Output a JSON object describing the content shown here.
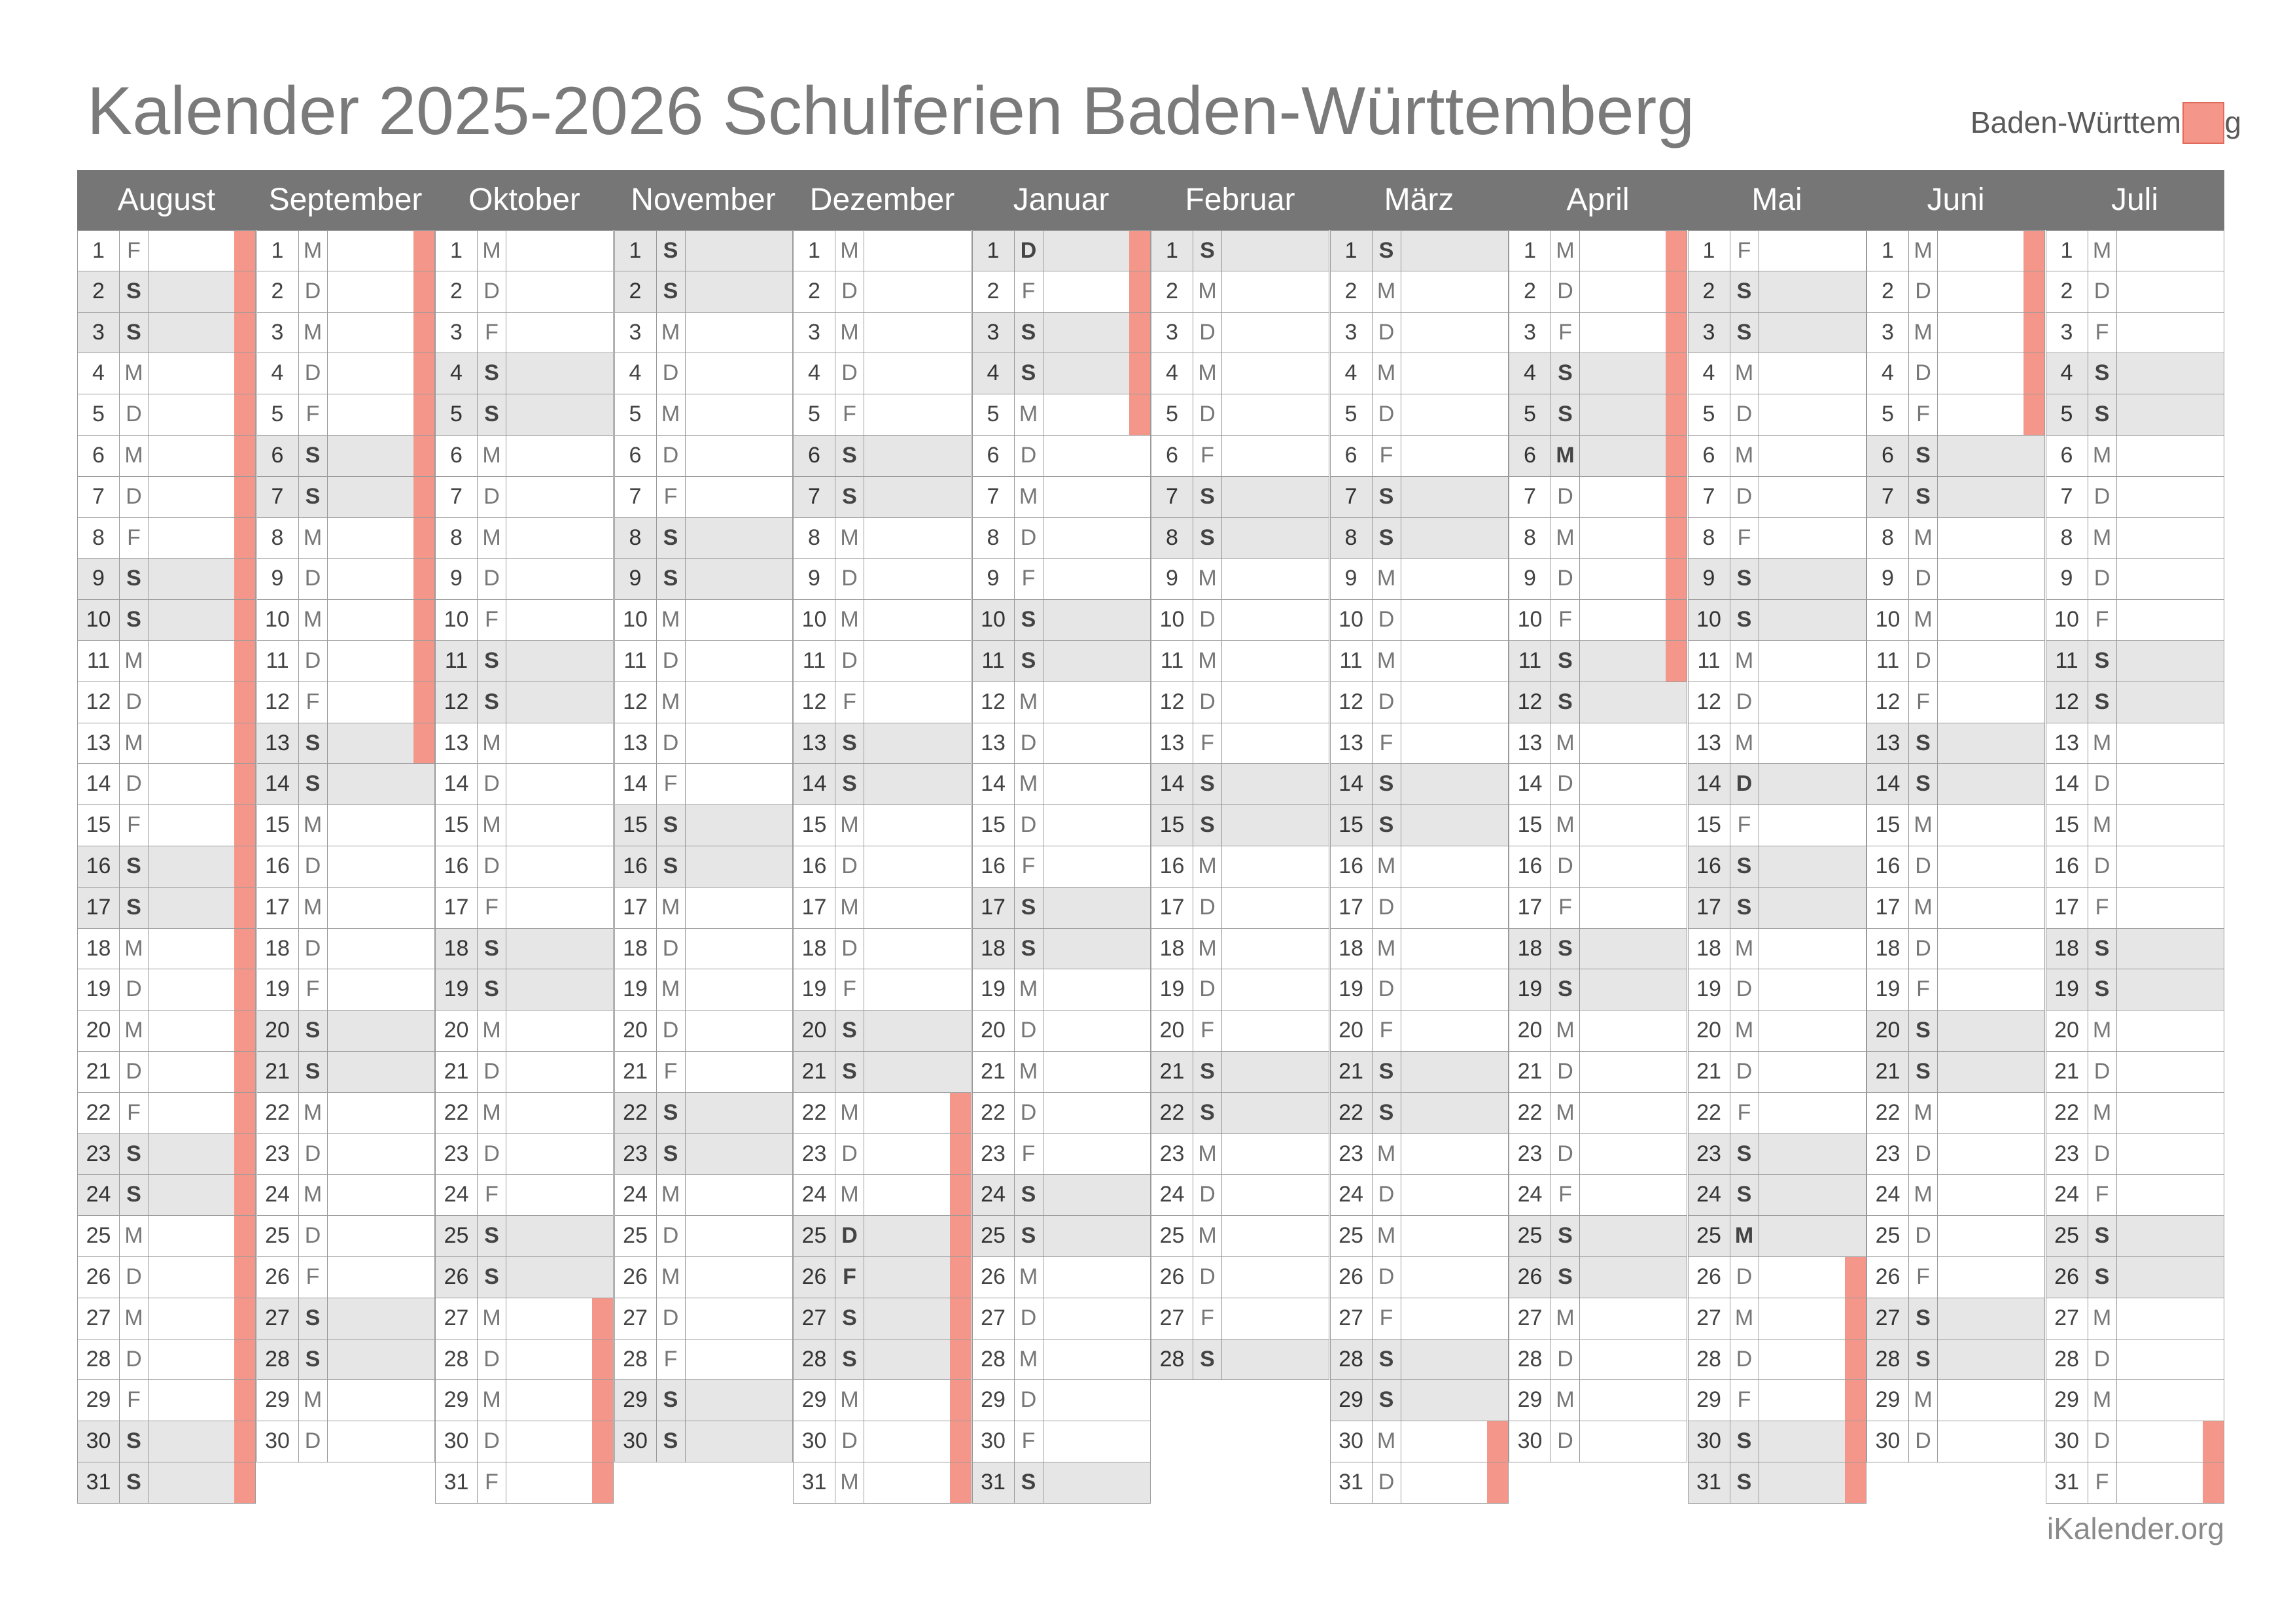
{
  "title": "Kalender 2025-2026 Schulferien Baden-Württemberg",
  "legend": {
    "label": "Baden-Württemberg",
    "color": "#f4978a"
  },
  "footer": "iKalender.org",
  "colors": {
    "header": "#767676",
    "holiday": "#f4978a",
    "weekend": "#e6e6e6"
  },
  "months": [
    {
      "name": "August",
      "year": 2025,
      "month": 8,
      "days": 31,
      "startWeekday": 5,
      "holidays": [
        1,
        2,
        3,
        4,
        5,
        6,
        7,
        8,
        9,
        10,
        11,
        12,
        13,
        14,
        15,
        16,
        17,
        18,
        19,
        20,
        21,
        22,
        23,
        24,
        25,
        26,
        27,
        28,
        29,
        30,
        31
      ]
    },
    {
      "name": "September",
      "year": 2025,
      "month": 9,
      "days": 30,
      "startWeekday": 1,
      "holidays": [
        1,
        2,
        3,
        4,
        5,
        6,
        7,
        8,
        9,
        10,
        11,
        12,
        13
      ]
    },
    {
      "name": "Oktober",
      "year": 2025,
      "month": 10,
      "days": 31,
      "startWeekday": 3,
      "holidays": [
        27,
        28,
        29,
        30,
        31
      ]
    },
    {
      "name": "November",
      "year": 2025,
      "month": 11,
      "days": 30,
      "startWeekday": 6,
      "holidays": []
    },
    {
      "name": "Dezember",
      "year": 2025,
      "month": 12,
      "days": 31,
      "startWeekday": 1,
      "holidays": [
        22,
        23,
        24,
        25,
        26,
        27,
        28,
        29,
        30,
        31
      ]
    },
    {
      "name": "Januar",
      "year": 2026,
      "month": 1,
      "days": 31,
      "startWeekday": 4,
      "holidays": [
        1,
        2,
        3,
        4,
        5
      ]
    },
    {
      "name": "Februar",
      "year": 2026,
      "month": 2,
      "days": 28,
      "startWeekday": 0,
      "holidays": []
    },
    {
      "name": "März",
      "year": 2026,
      "month": 3,
      "days": 31,
      "startWeekday": 0,
      "holidays": [
        30,
        31
      ]
    },
    {
      "name": "April",
      "year": 2026,
      "month": 4,
      "days": 30,
      "startWeekday": 3,
      "holidays": [
        1,
        2,
        3,
        4,
        5,
        6,
        7,
        8,
        9,
        10,
        11
      ]
    },
    {
      "name": "Mai",
      "year": 2026,
      "month": 5,
      "days": 31,
      "startWeekday": 5,
      "holidays": [
        26,
        27,
        28,
        29,
        30,
        31
      ]
    },
    {
      "name": "Juni",
      "year": 2026,
      "month": 6,
      "days": 30,
      "startWeekday": 1,
      "holidays": [
        1,
        2,
        3,
        4,
        5
      ]
    },
    {
      "name": "Juli",
      "year": 2026,
      "month": 7,
      "days": 31,
      "startWeekday": 3,
      "holidays": [
        30,
        31
      ]
    }
  ],
  "weekdayLetters": [
    "S",
    "M",
    "D",
    "M",
    "D",
    "F",
    "S"
  ],
  "extraShaded": {
    "Dezember": [
      25,
      26
    ],
    "Januar": [
      1
    ],
    "März": [],
    "April": [
      6
    ],
    "Mai": [
      14,
      25
    ],
    "Juni": []
  }
}
